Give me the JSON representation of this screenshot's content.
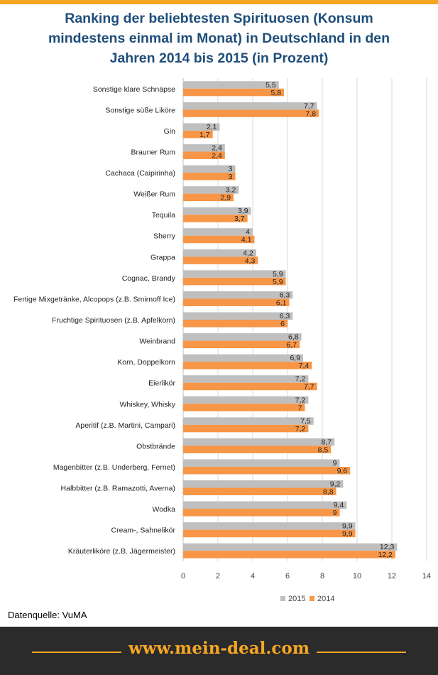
{
  "title_lines": [
    "Ranking der beliebtesten Spirituosen  (Konsum",
    "mindestens  einmal im Monat) in Deutschland  in den",
    "Jahren 2014 bis 2015 (in Prozent)"
  ],
  "source": "Datenquelle: VuMA",
  "footer": {
    "url": "www.mein-deal.com"
  },
  "colors": {
    "accent": "#f5a623",
    "title": "#1f4e79",
    "series_2015": "#bfbfbf",
    "series_2014": "#f79646",
    "footer_bg": "#2b2b2b"
  },
  "chart_data": {
    "type": "bar",
    "orientation": "horizontal",
    "title": "Ranking der beliebtesten Spirituosen (Konsum mindestens einmal im Monat) in Deutschland in den Jahren 2014 bis 2015 (in Prozent)",
    "categories": [
      "Sonstige klare Schnäpse",
      "Sonstige süße Liköre",
      "Gin",
      "Brauner Rum",
      "Cachaca (Caipirinha)",
      "Weißer Rum",
      "Tequila",
      "Sherry",
      "Grappa",
      "Cognac, Brandy",
      "Fertige Mixgetränke, Alcopops (z.B. Smirnoff Ice)",
      "Fruchtige Spirituosen (z.B. Apfelkorn)",
      "Weinbrand",
      "Korn, Doppelkorn",
      "Eierlikör",
      "Whiskey, Whisky",
      "Aperitif (z.B. Martini, Campari)",
      "Obstbrände",
      "Magenbitter (z.B. Underberg, Fernet)",
      "Halbbitter (z.B. Ramazotti, Averna)",
      "Wodka",
      "Cream-, Sahnelikör",
      "Kräuterliköre (z.B. Jägermeister)"
    ],
    "series": [
      {
        "name": "2015",
        "values": [
          5.5,
          7.7,
          2.1,
          2.4,
          3,
          3.2,
          3.9,
          4,
          4.2,
          5.9,
          6.3,
          6.3,
          6.8,
          6.9,
          7.2,
          7.2,
          7.5,
          8.7,
          9,
          9.2,
          9.4,
          9.9,
          12.3
        ]
      },
      {
        "name": "2014",
        "values": [
          5.8,
          7.8,
          1.7,
          2.4,
          3,
          2.9,
          3.7,
          4.1,
          4.3,
          5.9,
          6.1,
          6,
          6.7,
          7.4,
          7.7,
          7,
          7.2,
          8.5,
          9.6,
          8.8,
          9,
          9.9,
          12.2
        ]
      }
    ],
    "xlim": [
      0,
      14
    ],
    "xticks": [
      "0",
      "2",
      "4",
      "6",
      "8",
      "10",
      "12",
      "14"
    ],
    "grid": true,
    "legend": "bottom-right"
  }
}
